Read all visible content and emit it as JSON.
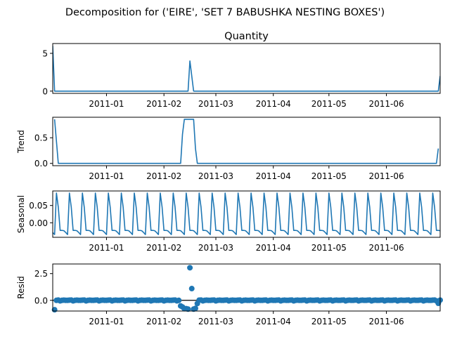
{
  "figure": {
    "suptitle": "Decomposition for ('EIRE', 'SET 7 BABUSHKA NESTING BOXES')"
  },
  "colors": {
    "series": "#1f77b4",
    "axes": "#000000",
    "resid_zero_line": "#000000"
  },
  "chart_data": [
    {
      "type": "line",
      "title": "Quantity",
      "ylabel": "",
      "ylim": [
        -0.3,
        6.3
      ],
      "xlim": [
        "2010-12-03",
        "2011-06-30"
      ],
      "yticks": [
        {
          "v": 0,
          "label": "0"
        },
        {
          "v": 5,
          "label": "5"
        }
      ],
      "xticks": [
        "2011-01",
        "2011-02",
        "2011-03",
        "2011-04",
        "2011-05",
        "2011-06"
      ],
      "series": [
        {
          "points": [
            [
              "2010-12-03",
              6
            ],
            [
              "2010-12-04",
              0
            ],
            [
              "2011-02-14",
              0
            ],
            [
              "2011-02-15",
              4
            ],
            [
              "2011-02-17",
              0
            ],
            [
              "2011-06-29",
              0
            ],
            [
              "2011-06-30",
              2
            ]
          ]
        }
      ]
    },
    {
      "type": "line",
      "title": "",
      "ylabel": "Trend",
      "ylim": [
        -0.045,
        0.9
      ],
      "xlim": [
        "2010-12-03",
        "2011-06-30"
      ],
      "yticks": [
        {
          "v": 0,
          "label": "0.0"
        },
        {
          "v": 0.5,
          "label": "0.5"
        }
      ],
      "xticks": [
        "2011-01",
        "2011-02",
        "2011-03",
        "2011-04",
        "2011-05",
        "2011-06"
      ],
      "series": [
        {
          "points": [
            [
              "2010-12-04",
              0.86
            ],
            [
              "2010-12-06",
              0.0
            ],
            [
              "2011-02-10",
              0.0
            ],
            [
              "2011-02-11",
              0.57
            ],
            [
              "2011-02-12",
              0.86
            ],
            [
              "2011-02-17",
              0.86
            ],
            [
              "2011-02-18",
              0.29
            ],
            [
              "2011-02-19",
              0.0
            ],
            [
              "2011-06-28",
              0.0
            ],
            [
              "2011-06-29",
              0.29
            ]
          ]
        }
      ]
    },
    {
      "type": "line",
      "title": "",
      "ylabel": "Seasonal",
      "ylim": [
        -0.042,
        0.092
      ],
      "xlim": [
        "2010-12-03",
        "2011-06-30"
      ],
      "yticks": [
        {
          "v": 0.05,
          "label": "0.05"
        },
        {
          "v": 0,
          "label": "0.00"
        }
      ],
      "xticks": [
        "2011-01",
        "2011-02",
        "2011-03",
        "2011-04",
        "2011-05",
        "2011-06"
      ],
      "period_days": 7,
      "phase_start": "2010-12-03",
      "pattern": [
        -0.028,
        -0.034,
        0.086,
        0.045,
        -0.022,
        -0.022,
        -0.023
      ],
      "series": [
        {
          "points": []
        }
      ]
    },
    {
      "type": "scatter",
      "title": "",
      "ylabel": "Resid",
      "ylim": [
        -1.0,
        3.4
      ],
      "xlim": [
        "2010-12-03",
        "2011-06-30"
      ],
      "yticks": [
        {
          "v": 2.5,
          "label": "2.5"
        },
        {
          "v": 0,
          "label": "0.0"
        }
      ],
      "xticks": [
        "2011-01",
        "2011-02",
        "2011-03",
        "2011-04",
        "2011-05",
        "2011-06"
      ],
      "zero_line": true,
      "base_pattern": [
        0.0,
        0.02,
        0.03,
        -0.05,
        0.0,
        0.02,
        0.0
      ],
      "overrides": [
        [
          "2010-12-04",
          -0.88
        ],
        [
          "2010-12-05",
          0.0
        ],
        [
          "2011-02-10",
          -0.52
        ],
        [
          "2011-02-11",
          -0.62
        ],
        [
          "2011-02-12",
          -0.78
        ],
        [
          "2011-02-13",
          -0.78
        ],
        [
          "2011-02-14",
          -0.82
        ],
        [
          "2011-02-15",
          3.05
        ],
        [
          "2011-02-16",
          1.1
        ],
        [
          "2011-02-17",
          -0.82
        ],
        [
          "2011-02-18",
          -0.75
        ],
        [
          "2011-02-19",
          -0.3
        ],
        [
          "2011-06-29",
          -0.28
        ]
      ],
      "series": [
        {
          "points": []
        }
      ]
    }
  ]
}
